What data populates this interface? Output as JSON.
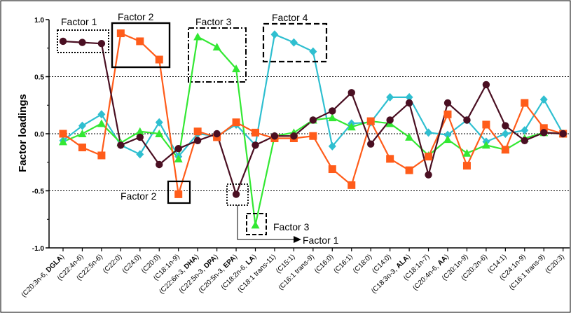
{
  "chart_data": {
    "type": "line",
    "title": "",
    "xlabel": "",
    "ylabel": "Factor loadings",
    "ylim": [
      -1.0,
      1.0
    ],
    "yticks": [
      "1.0",
      "0.5",
      "0.0",
      "-0.5",
      "-1.0"
    ],
    "reference_lines": [
      0.5,
      -0.5
    ],
    "categories": [
      {
        "pre": "(C20:3n-6, ",
        "bold": "DGLA",
        "post": ")"
      },
      {
        "pre": "(C22:4n-6)",
        "bold": "",
        "post": ""
      },
      {
        "pre": "(C22:5n-6)",
        "bold": "",
        "post": ""
      },
      {
        "pre": "(C22:0)",
        "bold": "",
        "post": ""
      },
      {
        "pre": "(C24:0)",
        "bold": "",
        "post": ""
      },
      {
        "pre": "(C20:0)",
        "bold": "",
        "post": ""
      },
      {
        "pre": "(C18:1n-9)",
        "bold": "",
        "post": ""
      },
      {
        "pre": "(C22:6n-3, ",
        "bold": "DHA",
        "post": ")"
      },
      {
        "pre": "(C22:5n-3, ",
        "bold": "DPA",
        "post": ")"
      },
      {
        "pre": "(C20:5n-3, ",
        "bold": "EPA",
        "post": ")"
      },
      {
        "pre": "(C18:2n-6, ",
        "bold": "LA",
        "post": ")"
      },
      {
        "pre": "(C18:1 trans-11)",
        "bold": "",
        "post": ""
      },
      {
        "pre": "(C15:1)",
        "bold": "",
        "post": ""
      },
      {
        "pre": "(C16:1 trans-9)",
        "bold": "",
        "post": ""
      },
      {
        "pre": "(C16:0)",
        "bold": "",
        "post": ""
      },
      {
        "pre": "(C16:1)",
        "bold": "",
        "post": ""
      },
      {
        "pre": "(C18:0)",
        "bold": "",
        "post": ""
      },
      {
        "pre": "(C14:0)",
        "bold": "",
        "post": ""
      },
      {
        "pre": "(C18:3n-3, ",
        "bold": "ALA",
        "post": ")"
      },
      {
        "pre": "(C18:1n-7)",
        "bold": "",
        "post": ""
      },
      {
        "pre": "(C20:4n-6, ",
        "bold": "AA",
        "post": ")"
      },
      {
        "pre": "(C20:1n-9)",
        "bold": "",
        "post": ""
      },
      {
        "pre": "(C20:2n-6)",
        "bold": "",
        "post": ""
      },
      {
        "pre": "(C14:1)",
        "bold": "",
        "post": ""
      },
      {
        "pre": "(C24:1n-9)",
        "bold": "",
        "post": ""
      },
      {
        "pre": "(C16:1 trans-9)",
        "bold": "",
        "post": ""
      },
      {
        "pre": "(C20:3)",
        "bold": "",
        "post": ""
      }
    ],
    "series": [
      {
        "marker": "circle",
        "color": "#4a0f22",
        "values": [
          0.81,
          0.8,
          0.79,
          -0.1,
          -0.03,
          -0.27,
          -0.13,
          -0.06,
          0.0,
          -0.53,
          -0.1,
          -0.02,
          -0.02,
          0.12,
          0.2,
          0.36,
          -0.09,
          0.12,
          0.27,
          -0.36,
          0.27,
          0.12,
          0.43,
          0.07,
          -0.06,
          0.01,
          0.0
        ]
      },
      {
        "marker": "square",
        "color": "#ff5c1a",
        "values": [
          0.0,
          -0.12,
          -0.19,
          0.88,
          0.81,
          0.65,
          -0.53,
          0.02,
          -0.03,
          0.1,
          0.01,
          -0.04,
          -0.04,
          -0.02,
          -0.31,
          -0.45,
          0.11,
          -0.22,
          -0.32,
          -0.2,
          0.17,
          -0.28,
          0.08,
          -0.14,
          0.27,
          0.05,
          0.0
        ]
      },
      {
        "marker": "triangle",
        "color": "#33e833",
        "values": [
          -0.07,
          0.0,
          0.09,
          -0.08,
          0.02,
          0.0,
          -0.22,
          0.85,
          0.76,
          0.57,
          -0.8,
          -0.02,
          0.01,
          0.12,
          0.14,
          0.06,
          0.11,
          0.09,
          -0.03,
          -0.19,
          -0.05,
          -0.17,
          -0.1,
          -0.14,
          -0.04,
          0.01,
          0.0
        ]
      },
      {
        "marker": "diamond",
        "color": "#2fbfd0",
        "values": [
          -0.06,
          0.07,
          0.17,
          -0.1,
          -0.18,
          0.1,
          -0.2,
          0.0,
          -0.02,
          0.08,
          -0.1,
          0.87,
          0.8,
          0.72,
          -0.11,
          0.09,
          0.1,
          0.32,
          0.32,
          0.01,
          -0.01,
          0.12,
          -0.07,
          0.0,
          0.03,
          0.3,
          0.0
        ]
      }
    ],
    "annotations": {
      "factor1_label": "Factor 1",
      "factor2_label": "Factor 2",
      "factor3_label": "Factor 3",
      "factor4_label": "Factor 4",
      "factor2_low_label": "Factor 2",
      "factor3_low_label": "Factor 3",
      "factor1_arrow_label": "Factor 1"
    }
  }
}
